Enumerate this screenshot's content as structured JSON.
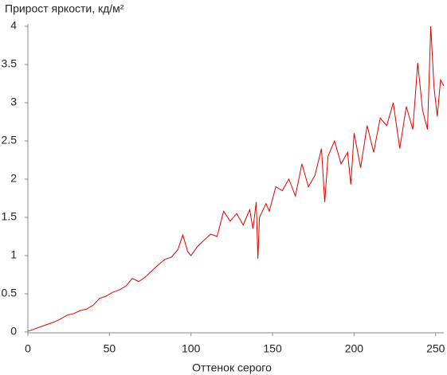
{
  "chart_data": {
    "type": "line",
    "title": "Прирост яркости, кд/м²",
    "xlabel": "Оттенок серого",
    "x": [
      0,
      4,
      8,
      12,
      16,
      20,
      24,
      28,
      32,
      36,
      40,
      44,
      48,
      52,
      56,
      60,
      64,
      68,
      72,
      76,
      80,
      84,
      88,
      92,
      95,
      98,
      100,
      104,
      108,
      112,
      116,
      120,
      124,
      128,
      132,
      136,
      138,
      140,
      141,
      142,
      146,
      148,
      152,
      156,
      160,
      164,
      168,
      172,
      176,
      180,
      182,
      184,
      188,
      192,
      196,
      198,
      200,
      204,
      208,
      212,
      216,
      220,
      224,
      228,
      232,
      236,
      239,
      242,
      245,
      247,
      249,
      251,
      253,
      255
    ],
    "series": [
      {
        "color": "#dd0000",
        "values": [
          0.01,
          0.04,
          0.07,
          0.1,
          0.13,
          0.17,
          0.22,
          0.24,
          0.28,
          0.3,
          0.35,
          0.44,
          0.47,
          0.52,
          0.55,
          0.6,
          0.7,
          0.66,
          0.72,
          0.8,
          0.88,
          0.95,
          0.98,
          1.08,
          1.27,
          1.05,
          1.0,
          1.12,
          1.2,
          1.28,
          1.25,
          1.58,
          1.45,
          1.55,
          1.4,
          1.6,
          1.35,
          1.7,
          0.96,
          1.5,
          1.68,
          1.58,
          1.9,
          1.85,
          2.0,
          1.78,
          2.2,
          1.9,
          2.05,
          2.4,
          1.7,
          2.3,
          2.5,
          2.2,
          2.35,
          1.93,
          2.6,
          2.15,
          2.7,
          2.35,
          2.8,
          2.7,
          3.0,
          2.4,
          2.95,
          2.65,
          3.52,
          2.9,
          2.65,
          4.0,
          3.2,
          2.82,
          3.3,
          3.22
        ]
      }
    ],
    "xlim": [
      0,
      255
    ],
    "ylim": [
      0,
      4
    ],
    "xticks": [
      0,
      50,
      100,
      150,
      200,
      250
    ],
    "yticks": [
      0,
      0.5,
      1,
      1.5,
      2,
      2.5,
      3,
      3.5,
      4
    ]
  }
}
